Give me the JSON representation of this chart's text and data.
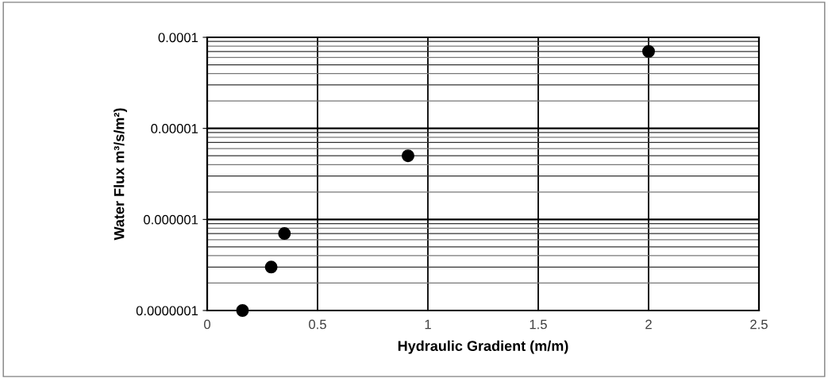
{
  "chart_data": {
    "type": "scatter",
    "xlabel": "Hydraulic Gradient (m/m)",
    "ylabel": "Water Flux m³/s/m²)",
    "x": [
      0.16,
      0.29,
      0.35,
      0.91,
      2.0
    ],
    "values": [
      1e-07,
      3e-07,
      7e-07,
      5e-06,
      7e-05
    ],
    "color": "#000000",
    "marker": "circle",
    "log": "y",
    "grid": true,
    "xlim": [
      0,
      2.5
    ],
    "xticks": [
      0,
      0.5,
      1,
      1.5,
      2,
      2.5
    ],
    "ylim": [
      1e-07,
      0.0001
    ],
    "yticks": [
      {
        "value": 1e-07,
        "label": "0.0000001"
      },
      {
        "value": 1e-06,
        "label": "0.000001"
      },
      {
        "value": 1e-05,
        "label": "0.00001"
      },
      {
        "value": 0.0001,
        "label": "0.0001"
      }
    ]
  }
}
